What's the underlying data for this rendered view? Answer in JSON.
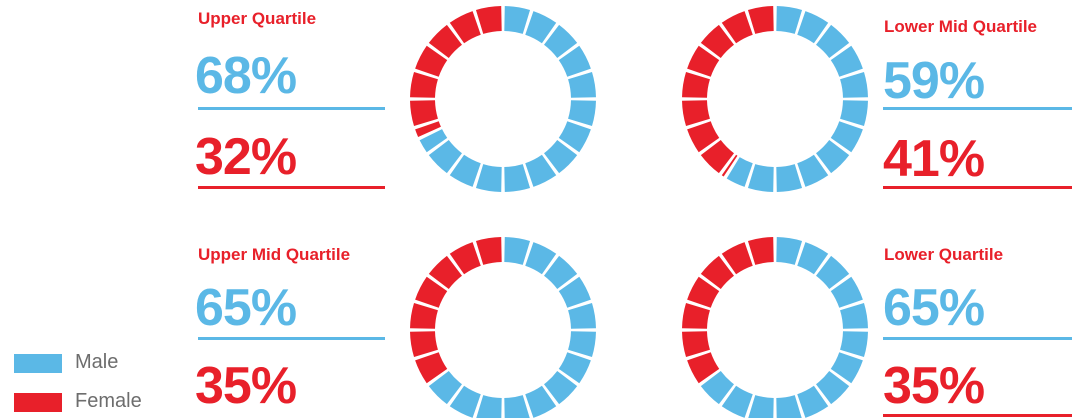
{
  "colors": {
    "male": "#5bb8e6",
    "female": "#e8202a"
  },
  "legend": [
    {
      "label": "Male",
      "color": "#5bb8e6"
    },
    {
      "label": "Female",
      "color": "#e8202a"
    }
  ],
  "panels": [
    {
      "title": "Upper Quartile",
      "male_pct": "68%",
      "female_pct": "32%"
    },
    {
      "title": "Lower Mid Quartile",
      "male_pct": "59%",
      "female_pct": "41%"
    },
    {
      "title": "Upper Mid Quartile",
      "male_pct": "65%",
      "female_pct": "35%"
    },
    {
      "title": "Lower Quartile",
      "male_pct": "65%",
      "female_pct": "35%"
    }
  ],
  "chart_data": [
    {
      "type": "pie",
      "title": "Upper Quartile",
      "categories": [
        "Male",
        "Female"
      ],
      "values": [
        68,
        32
      ],
      "style": "donut",
      "segments": 20
    },
    {
      "type": "pie",
      "title": "Lower Mid Quartile",
      "categories": [
        "Male",
        "Female"
      ],
      "values": [
        59,
        41
      ],
      "style": "donut",
      "segments": 20
    },
    {
      "type": "pie",
      "title": "Upper Mid Quartile",
      "categories": [
        "Male",
        "Female"
      ],
      "values": [
        65,
        35
      ],
      "style": "donut",
      "segments": 20
    },
    {
      "type": "pie",
      "title": "Lower Quartile",
      "categories": [
        "Male",
        "Female"
      ],
      "values": [
        65,
        35
      ],
      "style": "donut",
      "segments": 20
    }
  ]
}
